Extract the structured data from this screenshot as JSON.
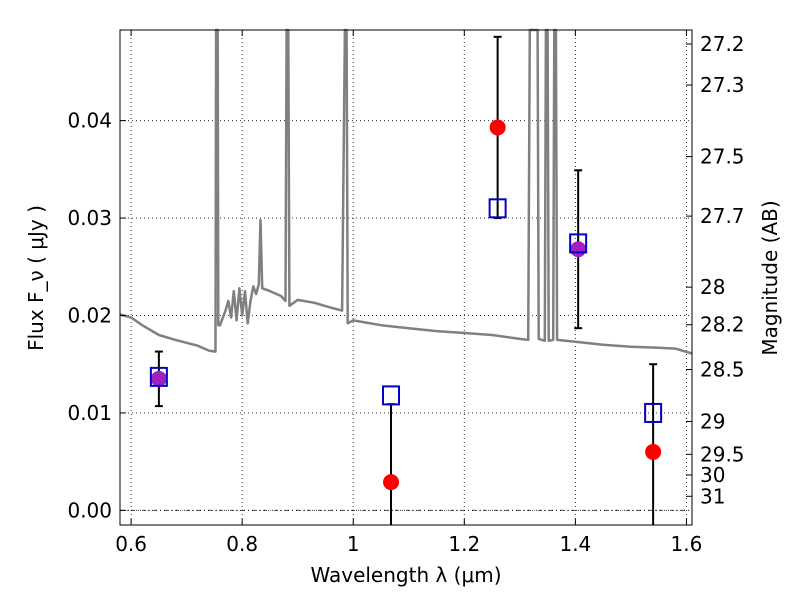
{
  "chart_data": {
    "type": "scatter",
    "title": "",
    "xlabel": "Wavelength  λ (μm)",
    "ylabel": "Flux  F_ν  ( μJy )",
    "ylabel_right": "Magnitude (AB)",
    "xlim": [
      0.58,
      1.61
    ],
    "ylim": [
      -0.0015,
      0.0493
    ],
    "grid": true,
    "x_ticks": [
      {
        "value": 0.6,
        "label": "0.6"
      },
      {
        "value": 0.8,
        "label": "0.8"
      },
      {
        "value": 1.0,
        "label": "1"
      },
      {
        "value": 1.2,
        "label": "1.2"
      },
      {
        "value": 1.4,
        "label": "1.4"
      },
      {
        "value": 1.6,
        "label": "1.6"
      }
    ],
    "y_ticks": [
      {
        "value": 0.0,
        "label": "0.00"
      },
      {
        "value": 0.01,
        "label": "0.01"
      },
      {
        "value": 0.02,
        "label": "0.02"
      },
      {
        "value": 0.03,
        "label": "0.03"
      },
      {
        "value": 0.04,
        "label": "0.04"
      }
    ],
    "right_ticks": [
      {
        "value": 27.2,
        "label": "27.2"
      },
      {
        "value": 27.3,
        "label": "27.3"
      },
      {
        "value": 27.5,
        "label": "27.5"
      },
      {
        "value": 27.7,
        "label": "27.7"
      },
      {
        "value": 28.0,
        "label": "28"
      },
      {
        "value": 28.2,
        "label": "28.2"
      },
      {
        "value": 28.5,
        "label": "28.5"
      },
      {
        "value": 29.0,
        "label": "29"
      },
      {
        "value": 29.5,
        "label": "29.5"
      },
      {
        "value": 30.0,
        "label": "30"
      },
      {
        "value": 31.0,
        "label": "31"
      }
    ],
    "colors": {
      "observed": "#ff0000",
      "model": "#0000cc",
      "overlap": "#a020c0",
      "template": "#808080",
      "errorbar": "#000000"
    },
    "observed": [
      {
        "x": 0.65,
        "y": 0.0135,
        "err": 0.0028
      },
      {
        "x": 1.068,
        "y": 0.0029,
        "err": 0.008
      },
      {
        "x": 1.26,
        "y": 0.0393,
        "err": 0.0093
      },
      {
        "x": 1.405,
        "y": 0.0268,
        "err": 0.0081
      },
      {
        "x": 1.54,
        "y": 0.006,
        "err": 0.009
      }
    ],
    "model_points": [
      {
        "x": 0.65,
        "y": 0.0137
      },
      {
        "x": 1.068,
        "y": 0.0118
      },
      {
        "x": 1.26,
        "y": 0.031
      },
      {
        "x": 1.405,
        "y": 0.0274
      },
      {
        "x": 1.54,
        "y": 0.01
      }
    ],
    "template_sed": [
      [
        0.58,
        0.0201
      ],
      [
        0.6,
        0.0198
      ],
      [
        0.62,
        0.019
      ],
      [
        0.65,
        0.018
      ],
      [
        0.68,
        0.0175
      ],
      [
        0.7,
        0.0172
      ],
      [
        0.72,
        0.0169
      ],
      [
        0.74,
        0.0164
      ],
      [
        0.752,
        0.0163
      ],
      [
        0.753,
        0.0493
      ],
      [
        0.756,
        0.0493
      ],
      [
        0.757,
        0.019
      ],
      [
        0.76,
        0.019
      ],
      [
        0.77,
        0.0205
      ],
      [
        0.775,
        0.0215
      ],
      [
        0.78,
        0.0198
      ],
      [
        0.785,
        0.0225
      ],
      [
        0.79,
        0.0195
      ],
      [
        0.795,
        0.0228
      ],
      [
        0.8,
        0.02
      ],
      [
        0.805,
        0.0225
      ],
      [
        0.81,
        0.0192
      ],
      [
        0.815,
        0.0215
      ],
      [
        0.82,
        0.023
      ],
      [
        0.825,
        0.0222
      ],
      [
        0.83,
        0.0232
      ],
      [
        0.833,
        0.0298
      ],
      [
        0.836,
        0.0228
      ],
      [
        0.85,
        0.0225
      ],
      [
        0.87,
        0.022
      ],
      [
        0.878,
        0.0215
      ],
      [
        0.88,
        0.0493
      ],
      [
        0.883,
        0.0493
      ],
      [
        0.885,
        0.021
      ],
      [
        0.9,
        0.0216
      ],
      [
        0.93,
        0.0213
      ],
      [
        0.96,
        0.0208
      ],
      [
        0.98,
        0.0205
      ],
      [
        0.985,
        0.0493
      ],
      [
        0.988,
        0.0493
      ],
      [
        0.99,
        0.0192
      ],
      [
        1.0,
        0.0195
      ],
      [
        1.05,
        0.019
      ],
      [
        1.1,
        0.0187
      ],
      [
        1.15,
        0.0184
      ],
      [
        1.2,
        0.0182
      ],
      [
        1.25,
        0.018
      ],
      [
        1.3,
        0.0176
      ],
      [
        1.315,
        0.0175
      ],
      [
        1.318,
        0.0493
      ],
      [
        1.332,
        0.0493
      ],
      [
        1.334,
        0.0176
      ],
      [
        1.345,
        0.0174
      ],
      [
        1.347,
        0.0493
      ],
      [
        1.35,
        0.0493
      ],
      [
        1.352,
        0.0174
      ],
      [
        1.36,
        0.0175
      ],
      [
        1.362,
        0.0493
      ],
      [
        1.365,
        0.0493
      ],
      [
        1.367,
        0.0175
      ],
      [
        1.4,
        0.0173
      ],
      [
        1.45,
        0.017
      ],
      [
        1.5,
        0.0168
      ],
      [
        1.55,
        0.0167
      ],
      [
        1.58,
        0.0166
      ],
      [
        1.61,
        0.0161
      ]
    ]
  }
}
